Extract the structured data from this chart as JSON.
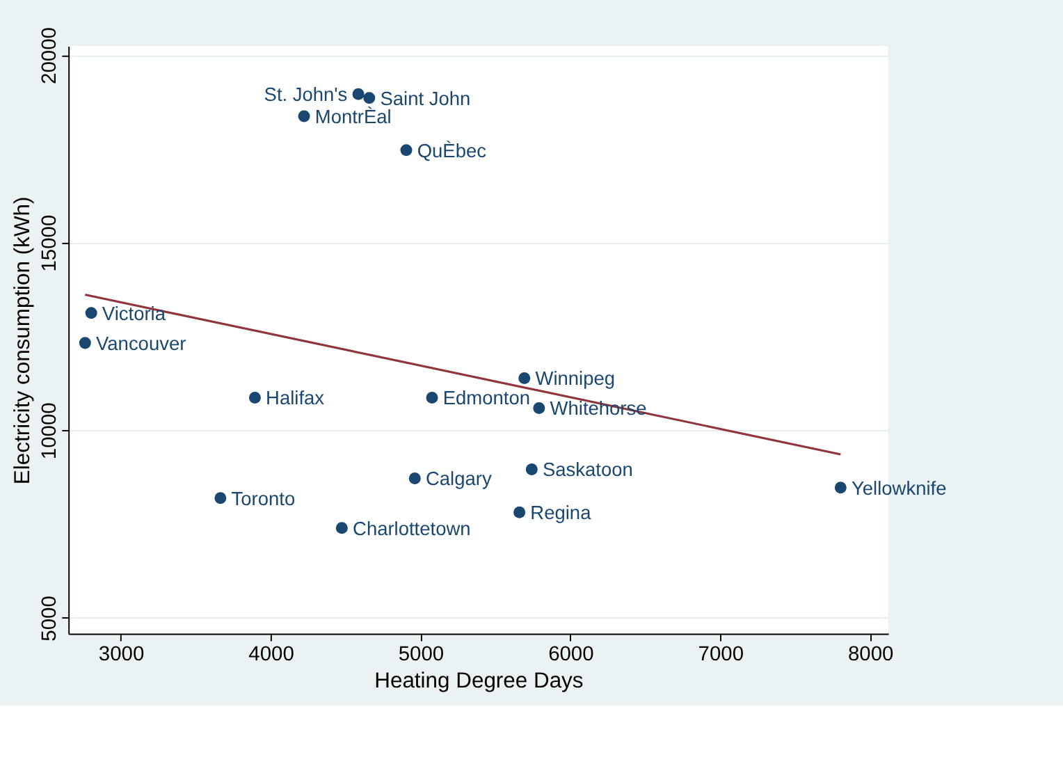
{
  "chart_data": {
    "type": "scatter",
    "xlabel": "Heating Degree Days",
    "ylabel": "Electricity consumption (kWh)",
    "xlim": [
      2650,
      8120
    ],
    "ylim": [
      4580,
      20240
    ],
    "xticks": [
      3000,
      4000,
      5000,
      6000,
      7000,
      8000
    ],
    "yticks": [
      5000,
      10000,
      15000,
      20000
    ],
    "grid": "y",
    "marker": "circle",
    "series": [
      {
        "type": "scatter",
        "color": "#1a476f",
        "x": [
          4585,
          4658,
          4223,
          4905,
          2803,
          2762,
          3895,
          5077,
          5693,
          5791,
          4962,
          5742,
          3665,
          5660,
          4475,
          7803
        ],
        "values": [
          18958,
          18854,
          18368,
          17465,
          13125,
          12326,
          10868,
          10868,
          11389,
          10590,
          8715,
          8958,
          8194,
          7813,
          7396,
          8472
        ]
      },
      {
        "type": "line",
        "color": "#90353b",
        "line_style": "solid",
        "marker": "none",
        "x": [
          2762,
          7803
        ],
        "values": [
          13611,
          9358
        ]
      }
    ],
    "annotations": [
      {
        "text": "St. John's",
        "x": 4585,
        "y": 18958
      },
      {
        "text": "Saint John",
        "x": 4658,
        "y": 18854
      },
      {
        "text": "MontrÈal",
        "x": 4223,
        "y": 18368
      },
      {
        "text": "QuÈbec",
        "x": 4905,
        "y": 17465
      },
      {
        "text": "Victoria",
        "x": 2803,
        "y": 13125
      },
      {
        "text": "Vancouver",
        "x": 2762,
        "y": 12326
      },
      {
        "text": "Halifax",
        "x": 3895,
        "y": 10868
      },
      {
        "text": "Edmonton",
        "x": 5077,
        "y": 10868
      },
      {
        "text": "Winnipeg",
        "x": 5693,
        "y": 11389
      },
      {
        "text": "Whitehorse",
        "x": 5791,
        "y": 10590
      },
      {
        "text": "Calgary",
        "x": 4962,
        "y": 8715
      },
      {
        "text": "Saskatoon",
        "x": 5742,
        "y": 8958
      },
      {
        "text": "Toronto",
        "x": 3665,
        "y": 8194
      },
      {
        "text": "Regina",
        "x": 5660,
        "y": 7813
      },
      {
        "text": "Charlottetown",
        "x": 4475,
        "y": 7396
      },
      {
        "text": "Yellowknife",
        "x": 7803,
        "y": 8472
      }
    ]
  }
}
